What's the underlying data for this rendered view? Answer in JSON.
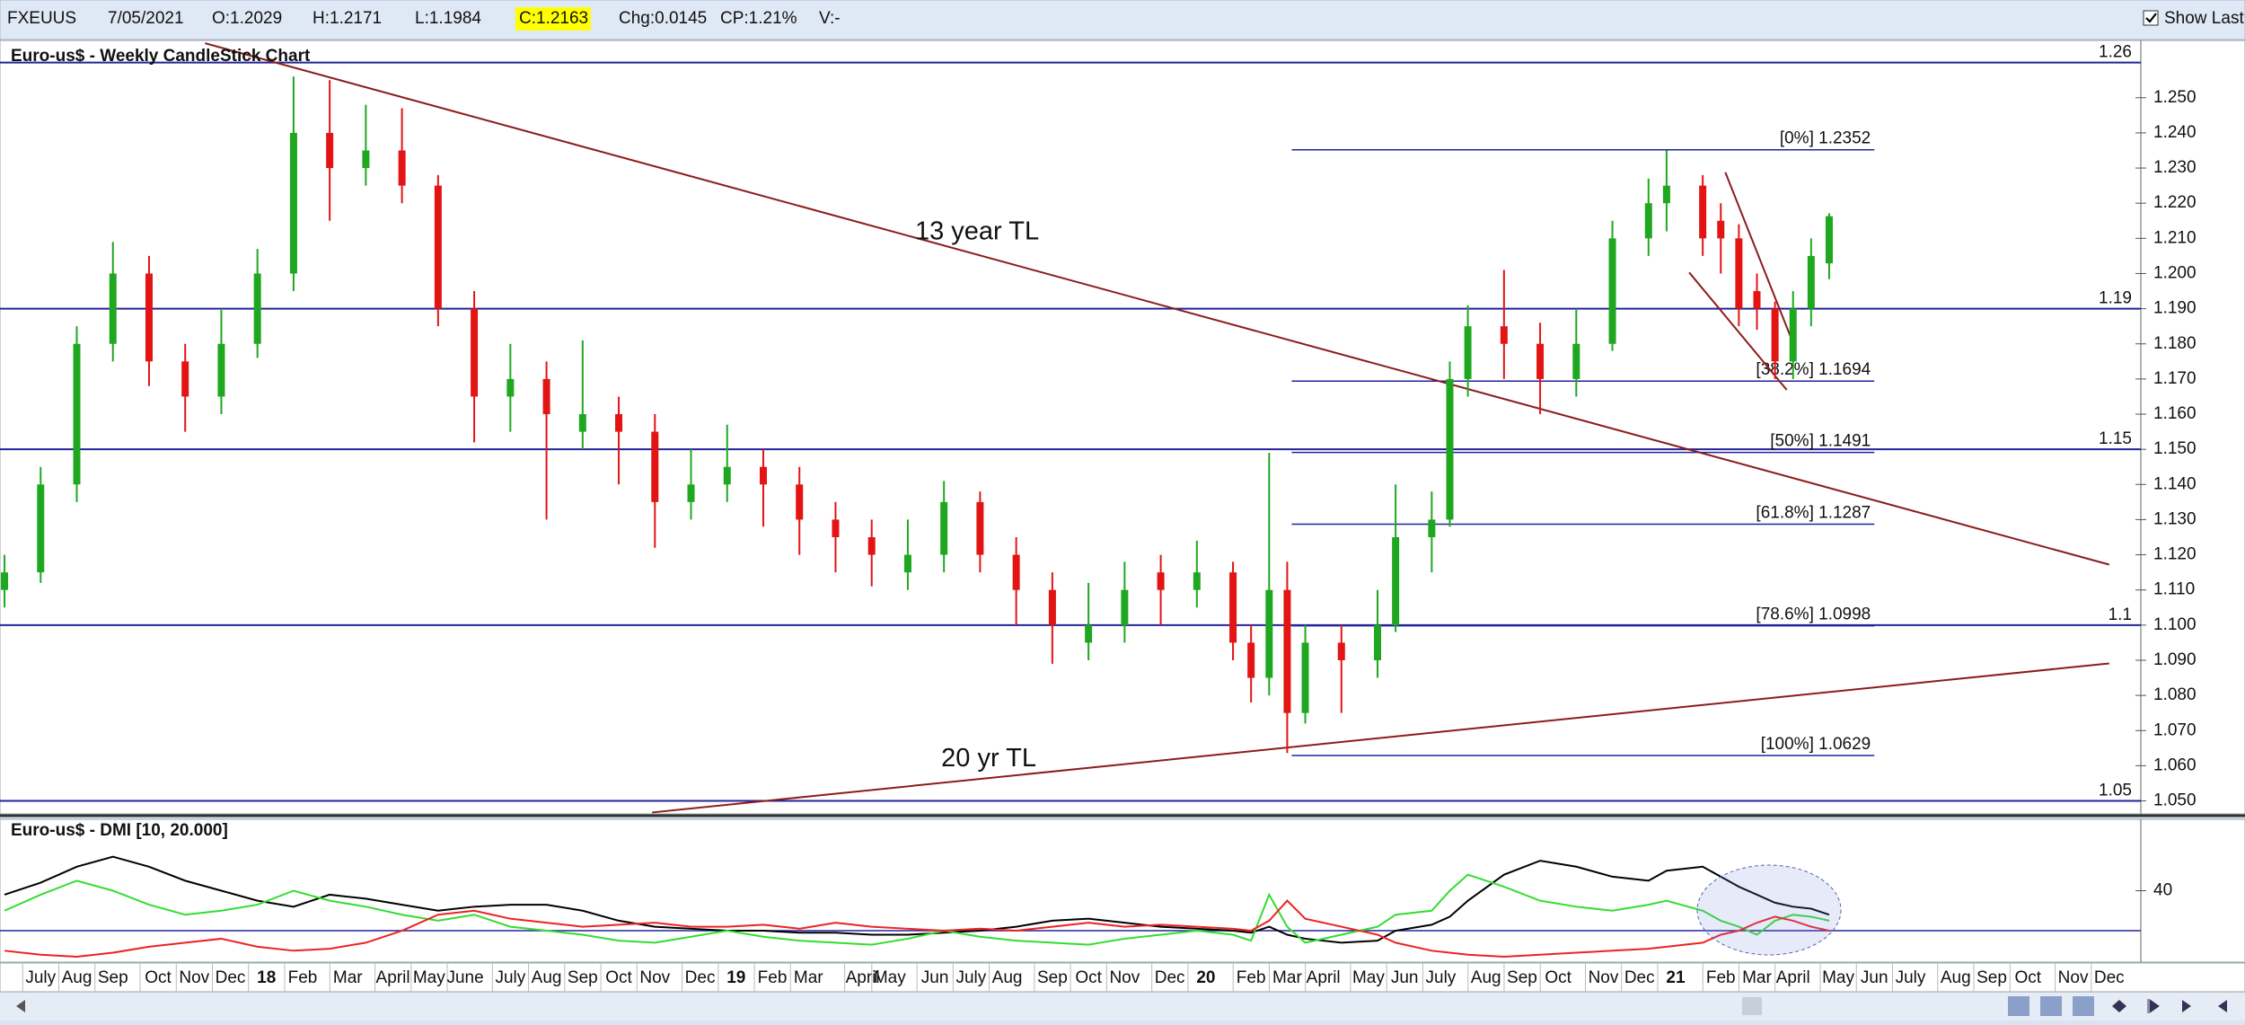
{
  "toolbar": {
    "symbol": "FXEUUS",
    "date": "7/05/2021",
    "open": "O:1.2029",
    "high": "H:1.2171",
    "low": "L:1.1984",
    "close": "C:1.2163",
    "change": "Chg:0.0145",
    "change_pct": "CP:1.21%",
    "volume": "V:-",
    "show_last": "Show Last"
  },
  "chart_data": [
    {
      "type": "candlestick",
      "title": "Euro-us$ - Weekly CandleStick Chart",
      "up_color": "#1fa81f",
      "down_color": "#e31414",
      "x": [
        0,
        4,
        8,
        12,
        16,
        20,
        24,
        28,
        32,
        36,
        40,
        44,
        48,
        52,
        56,
        60,
        64,
        68,
        72,
        76,
        80,
        84,
        88,
        92,
        96,
        100,
        104,
        108,
        112,
        116,
        120,
        124,
        128,
        132,
        136,
        138,
        140,
        142,
        144,
        148,
        152,
        154,
        158,
        160,
        162,
        166,
        170,
        174,
        178,
        182,
        184,
        188,
        190,
        192,
        194,
        196,
        198,
        200,
        202
      ],
      "open": [
        1.11,
        1.115,
        1.14,
        1.18,
        1.2,
        1.175,
        1.165,
        1.18,
        1.2,
        1.24,
        1.23,
        1.235,
        1.225,
        1.19,
        1.165,
        1.17,
        1.155,
        1.16,
        1.155,
        1.135,
        1.14,
        1.145,
        1.14,
        1.13,
        1.125,
        1.115,
        1.12,
        1.135,
        1.12,
        1.11,
        1.095,
        1.1,
        1.115,
        1.11,
        1.115,
        1.095,
        1.085,
        1.11,
        1.075,
        1.095,
        1.09,
        1.1,
        1.125,
        1.13,
        1.17,
        1.185,
        1.18,
        1.17,
        1.18,
        1.21,
        1.22,
        1.225,
        1.215,
        1.21,
        1.195,
        1.19,
        1.175,
        1.19,
        1.2029
      ],
      "high": [
        1.12,
        1.145,
        1.185,
        1.209,
        1.205,
        1.18,
        1.19,
        1.207,
        1.256,
        1.255,
        1.248,
        1.247,
        1.228,
        1.195,
        1.18,
        1.175,
        1.181,
        1.165,
        1.16,
        1.15,
        1.157,
        1.15,
        1.145,
        1.135,
        1.13,
        1.13,
        1.141,
        1.138,
        1.125,
        1.115,
        1.112,
        1.118,
        1.12,
        1.124,
        1.118,
        1.1,
        1.149,
        1.118,
        1.1,
        1.1,
        1.11,
        1.14,
        1.138,
        1.175,
        1.191,
        1.201,
        1.186,
        1.19,
        1.215,
        1.227,
        1.235,
        1.228,
        1.22,
        1.214,
        1.2,
        1.192,
        1.195,
        1.21,
        1.2171
      ],
      "low": [
        1.105,
        1.112,
        1.135,
        1.175,
        1.168,
        1.155,
        1.16,
        1.176,
        1.195,
        1.215,
        1.225,
        1.22,
        1.185,
        1.152,
        1.155,
        1.13,
        1.15,
        1.14,
        1.122,
        1.13,
        1.135,
        1.128,
        1.12,
        1.115,
        1.111,
        1.11,
        1.115,
        1.115,
        1.1,
        1.089,
        1.09,
        1.095,
        1.1,
        1.105,
        1.09,
        1.078,
        1.08,
        1.0636,
        1.072,
        1.075,
        1.085,
        1.098,
        1.115,
        1.128,
        1.165,
        1.17,
        1.16,
        1.165,
        1.178,
        1.205,
        1.212,
        1.205,
        1.2,
        1.185,
        1.184,
        1.17,
        1.17,
        1.185,
        1.1984
      ],
      "close": [
        1.115,
        1.14,
        1.18,
        1.2,
        1.175,
        1.165,
        1.18,
        1.2,
        1.24,
        1.23,
        1.235,
        1.225,
        1.19,
        1.165,
        1.17,
        1.16,
        1.16,
        1.155,
        1.135,
        1.14,
        1.145,
        1.14,
        1.13,
        1.125,
        1.12,
        1.12,
        1.135,
        1.12,
        1.11,
        1.1,
        1.1,
        1.11,
        1.11,
        1.115,
        1.095,
        1.085,
        1.11,
        1.075,
        1.095,
        1.09,
        1.1,
        1.125,
        1.13,
        1.17,
        1.185,
        1.18,
        1.17,
        1.18,
        1.21,
        1.22,
        1.225,
        1.21,
        1.21,
        1.19,
        1.19,
        1.175,
        1.19,
        1.205,
        1.2163
      ],
      "xlim": [
        -0.5,
        236.5
      ],
      "ylim": [
        1.0463,
        1.2663
      ],
      "yticks": [
        {
          "value": 1.05,
          "label": "1.050"
        },
        {
          "value": 1.06,
          "label": "1.060"
        },
        {
          "value": 1.07,
          "label": "1.070"
        },
        {
          "value": 1.08,
          "label": "1.080"
        },
        {
          "value": 1.09,
          "label": "1.090"
        },
        {
          "value": 1.1,
          "label": "1.100"
        },
        {
          "value": 1.11,
          "label": "1.110"
        },
        {
          "value": 1.12,
          "label": "1.120"
        },
        {
          "value": 1.13,
          "label": "1.130"
        },
        {
          "value": 1.14,
          "label": "1.140"
        },
        {
          "value": 1.15,
          "label": "1.150"
        },
        {
          "value": 1.16,
          "label": "1.160"
        },
        {
          "value": 1.17,
          "label": "1.170"
        },
        {
          "value": 1.18,
          "label": "1.180"
        },
        {
          "value": 1.19,
          "label": "1.190"
        },
        {
          "value": 1.2,
          "label": "1.200"
        },
        {
          "value": 1.21,
          "label": "1.210"
        },
        {
          "value": 1.22,
          "label": "1.220"
        },
        {
          "value": 1.23,
          "label": "1.230"
        },
        {
          "value": 1.24,
          "label": "1.240"
        },
        {
          "value": 1.25,
          "label": "1.250"
        }
      ],
      "xticks": [
        {
          "value": 4,
          "label": "July"
        },
        {
          "value": 8,
          "label": "Aug"
        },
        {
          "value": 12,
          "label": "Sep"
        },
        {
          "value": 17,
          "label": "Oct"
        },
        {
          "value": 21,
          "label": "Nov"
        },
        {
          "value": 25,
          "label": "Dec"
        },
        {
          "value": 29,
          "label": "18"
        },
        {
          "value": 33,
          "label": "Feb"
        },
        {
          "value": 38,
          "label": "Mar"
        },
        {
          "value": 43,
          "label": "April"
        },
        {
          "value": 47,
          "label": "May"
        },
        {
          "value": 51,
          "label": "June"
        },
        {
          "value": 56,
          "label": "July"
        },
        {
          "value": 60,
          "label": "Aug"
        },
        {
          "value": 64,
          "label": "Sep"
        },
        {
          "value": 68,
          "label": "Oct"
        },
        {
          "value": 72,
          "label": "Nov"
        },
        {
          "value": 77,
          "label": "Dec"
        },
        {
          "value": 81,
          "label": "19"
        },
        {
          "value": 85,
          "label": "Feb"
        },
        {
          "value": 89,
          "label": "Mar"
        },
        {
          "value": 95,
          "label": "April"
        },
        {
          "value": 98,
          "label": "May"
        },
        {
          "value": 103,
          "label": "Jun"
        },
        {
          "value": 107,
          "label": "July"
        },
        {
          "value": 111,
          "label": "Aug"
        },
        {
          "value": 116,
          "label": "Sep"
        },
        {
          "value": 120,
          "label": "Oct"
        },
        {
          "value": 124,
          "label": "Nov"
        },
        {
          "value": 129,
          "label": "Dec"
        },
        {
          "value": 133,
          "label": "20"
        },
        {
          "value": 138,
          "label": "Feb"
        },
        {
          "value": 142,
          "label": "Mar"
        },
        {
          "value": 146,
          "label": "April"
        },
        {
          "value": 151,
          "label": "May"
        },
        {
          "value": 155,
          "label": "Jun"
        },
        {
          "value": 159,
          "label": "July"
        },
        {
          "value": 164,
          "label": "Aug"
        },
        {
          "value": 168,
          "label": "Sep"
        },
        {
          "value": 172,
          "label": "Oct"
        },
        {
          "value": 177,
          "label": "Nov"
        },
        {
          "value": 181,
          "label": "Dec"
        },
        {
          "value": 185,
          "label": "21"
        },
        {
          "value": 190,
          "label": "Feb"
        },
        {
          "value": 194,
          "label": "Mar"
        },
        {
          "value": 198,
          "label": "April"
        },
        {
          "value": 203,
          "label": "May"
        },
        {
          "value": 207,
          "label": "Jun"
        },
        {
          "value": 211,
          "label": "July"
        },
        {
          "value": 216,
          "label": "Aug"
        },
        {
          "value": 220,
          "label": "Sep"
        },
        {
          "value": 224,
          "label": "Oct"
        },
        {
          "value": 229,
          "label": "Nov"
        },
        {
          "value": 233,
          "label": "Dec"
        }
      ],
      "level_color": "#23239a",
      "levels": [
        1.26,
        1.19,
        1.15,
        1.1,
        1.05
      ],
      "fib": {
        "x": [
          142.5,
          207
        ],
        "levels": [
          {
            "value": 1.2352,
            "label": "[0%] 1.2352"
          },
          {
            "value": 1.1694,
            "label": "[38.2%] 1.1694"
          },
          {
            "value": 1.1491,
            "label": "[50%] 1.1491"
          },
          {
            "value": 1.1287,
            "label": "[61.8%] 1.1287"
          },
          {
            "value": 1.0998,
            "label": "[78.6%] 1.0998"
          },
          {
            "value": 1.0629,
            "label": "[100%] 1.0629"
          }
        ]
      },
      "trendline_color": "#8b1d1d",
      "trendlines": [
        {
          "x": [
            22.2,
            233
          ],
          "y": [
            1.2655,
            1.1172
          ]
        },
        {
          "x": [
            71.7,
            233
          ],
          "y": [
            1.0467,
            1.0891
          ]
        },
        {
          "x": [
            190.5,
            198.3
          ],
          "y": [
            1.2288,
            1.1783
          ]
        },
        {
          "x": [
            186.5,
            197.3
          ],
          "y": [
            1.2003,
            1.1669
          ]
        }
      ],
      "annotations": [
        {
          "text": "13 year TL",
          "x": 100.8,
          "y": 1.2117
        },
        {
          "text": "20 yr TL",
          "x": 103.7,
          "y": 1.0618
        }
      ]
    },
    {
      "type": "line",
      "title": "Euro-us$ - DMI [10, 20.000]",
      "x": [
        0,
        4,
        8,
        12,
        16,
        20,
        24,
        28,
        32,
        36,
        40,
        44,
        48,
        52,
        56,
        60,
        64,
        68,
        72,
        76,
        80,
        84,
        88,
        92,
        96,
        100,
        104,
        108,
        112,
        116,
        120,
        124,
        128,
        132,
        136,
        138,
        140,
        142,
        144,
        148,
        152,
        154,
        158,
        160,
        162,
        166,
        170,
        174,
        178,
        182,
        184,
        188,
        190,
        192,
        194,
        196,
        198,
        200,
        202
      ],
      "series": [
        {
          "color": "#000000",
          "values": [
            38,
            44,
            52,
            57,
            52,
            45,
            40,
            35,
            32,
            38,
            36,
            33,
            30,
            32,
            33,
            33,
            30,
            25,
            22,
            21,
            20,
            20,
            19,
            19,
            18,
            18,
            19,
            20,
            22,
            25,
            26,
            24,
            22,
            21,
            20,
            19,
            22,
            18,
            16,
            14,
            15,
            20,
            23,
            27,
            35,
            48,
            55,
            52,
            47,
            45,
            50,
            52,
            47,
            42,
            38,
            34,
            32,
            31,
            28
          ]
        },
        {
          "color": "#33dd33",
          "values": [
            30,
            38,
            45,
            40,
            33,
            28,
            30,
            33,
            40,
            35,
            32,
            28,
            25,
            28,
            22,
            20,
            18,
            15,
            14,
            17,
            20,
            17,
            15,
            14,
            13,
            16,
            20,
            17,
            15,
            14,
            13,
            16,
            18,
            20,
            18,
            15,
            38,
            22,
            14,
            18,
            22,
            28,
            30,
            40,
            48,
            42,
            35,
            32,
            30,
            33,
            35,
            30,
            25,
            22,
            18,
            25,
            28,
            27,
            25
          ]
        },
        {
          "color": "#ee2222",
          "values": [
            10,
            8,
            7,
            9,
            12,
            14,
            16,
            12,
            10,
            11,
            14,
            20,
            28,
            30,
            26,
            24,
            22,
            23,
            24,
            22,
            22,
            23,
            21,
            24,
            22,
            21,
            20,
            21,
            20,
            22,
            24,
            22,
            23,
            22,
            21,
            20,
            25,
            35,
            26,
            22,
            18,
            14,
            10,
            9,
            8,
            7,
            8,
            9,
            10,
            11,
            12,
            14,
            18,
            20,
            24,
            27,
            25,
            22,
            20
          ]
        }
      ],
      "xlim": [
        -0.5,
        236.5
      ],
      "ylim": [
        4.3,
        75.7
      ],
      "yticks": [
        40
      ],
      "reference_lines": [
        20
      ],
      "reference_color": "#23239a"
    }
  ]
}
